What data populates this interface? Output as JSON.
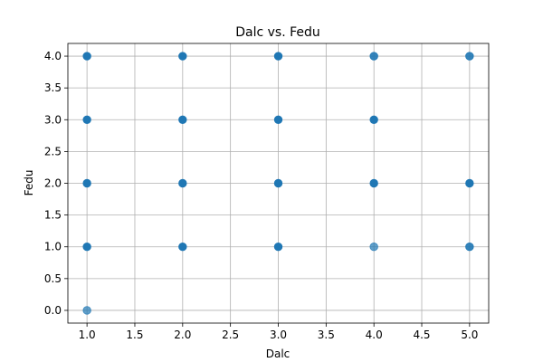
{
  "chart_data": {
    "type": "scatter",
    "title": "Dalc vs. Fedu",
    "xlabel": "Dalc",
    "ylabel": "Fedu",
    "xlim": [
      0.8,
      5.2
    ],
    "ylim": [
      -0.2,
      4.2
    ],
    "xticks": [
      1.0,
      1.5,
      2.0,
      2.5,
      3.0,
      3.5,
      4.0,
      4.5,
      5.0
    ],
    "yticks": [
      0.0,
      0.5,
      1.0,
      1.5,
      2.0,
      2.5,
      3.0,
      3.5,
      4.0
    ],
    "xtick_labels": [
      "1.0",
      "1.5",
      "2.0",
      "2.5",
      "3.0",
      "3.5",
      "4.0",
      "4.5",
      "5.0"
    ],
    "ytick_labels": [
      "0.0",
      "0.5",
      "1.0",
      "1.5",
      "2.0",
      "2.5",
      "3.0",
      "3.5",
      "4.0"
    ],
    "grid": true,
    "marker_color": "#1f77b4",
    "points": [
      {
        "x": 1,
        "y": 0,
        "alpha": 0.7
      },
      {
        "x": 1,
        "y": 1,
        "alpha": 1.0
      },
      {
        "x": 1,
        "y": 2,
        "alpha": 1.0
      },
      {
        "x": 1,
        "y": 3,
        "alpha": 1.0
      },
      {
        "x": 1,
        "y": 4,
        "alpha": 1.0
      },
      {
        "x": 2,
        "y": 1,
        "alpha": 1.0
      },
      {
        "x": 2,
        "y": 2,
        "alpha": 1.0
      },
      {
        "x": 2,
        "y": 3,
        "alpha": 1.0
      },
      {
        "x": 2,
        "y": 4,
        "alpha": 1.0
      },
      {
        "x": 3,
        "y": 1,
        "alpha": 1.0
      },
      {
        "x": 3,
        "y": 2,
        "alpha": 1.0
      },
      {
        "x": 3,
        "y": 3,
        "alpha": 1.0
      },
      {
        "x": 3,
        "y": 4,
        "alpha": 1.0
      },
      {
        "x": 4,
        "y": 1,
        "alpha": 0.7
      },
      {
        "x": 4,
        "y": 2,
        "alpha": 1.0
      },
      {
        "x": 4,
        "y": 3,
        "alpha": 1.0
      },
      {
        "x": 4,
        "y": 4,
        "alpha": 0.9
      },
      {
        "x": 5,
        "y": 1,
        "alpha": 0.9
      },
      {
        "x": 5,
        "y": 2,
        "alpha": 1.0
      },
      {
        "x": 5,
        "y": 4,
        "alpha": 0.9
      }
    ]
  }
}
